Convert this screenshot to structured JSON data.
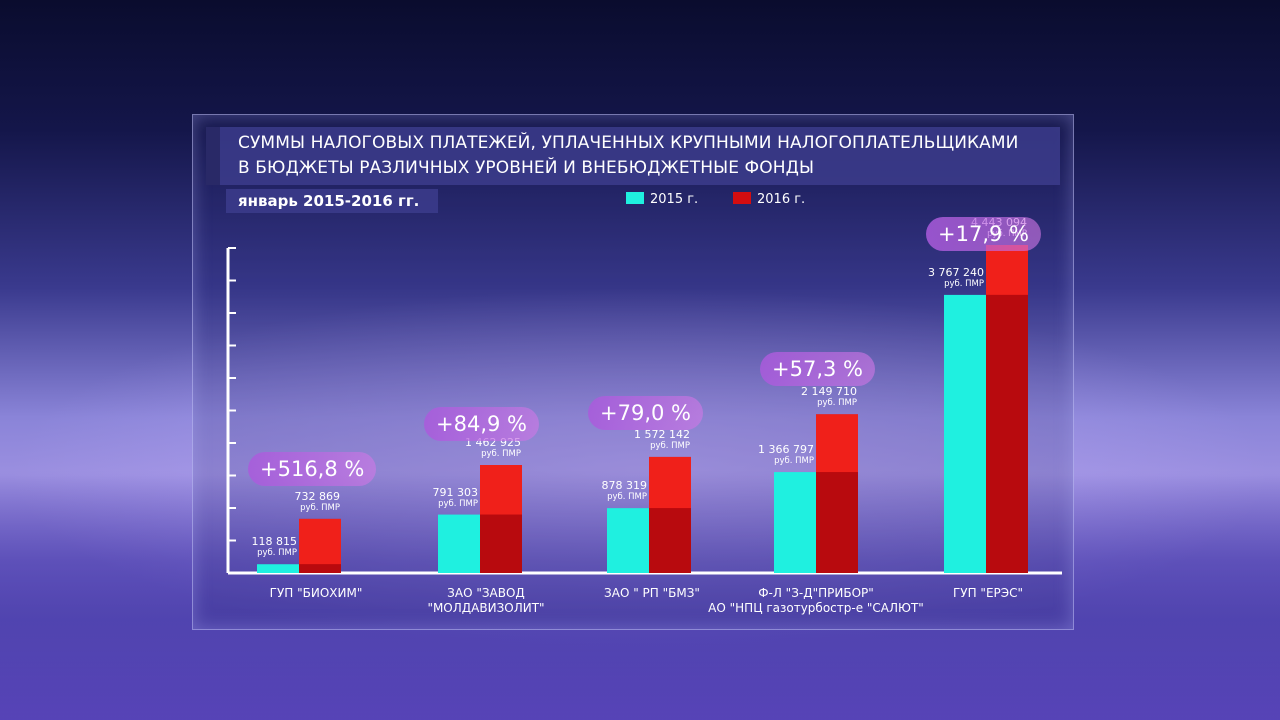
{
  "title_lines": [
    "СУММЫ НАЛОГОВЫХ ПЛАТЕЖЕЙ, УПЛАЧЕННЫХ КРУПНЫМИ НАЛОГОПЛАТЕЛЬЩИКАМИ",
    "В БЮДЖЕТЫ РАЗЛИЧНЫХ УРОВНЕЙ И ВНЕБЮДЖЕТНЫЕ ФОНДЫ"
  ],
  "subtitle": "январь 2015-2016 гг.",
  "legend": [
    {
      "label": "2015 г.",
      "color": "#1ff0e0"
    },
    {
      "label": "2016 г.",
      "color": "#d40d10"
    }
  ],
  "unit": "руб. ПМР",
  "chart_data": {
    "type": "bar",
    "title": "СУММЫ НАЛОГОВЫХ ПЛАТЕЖЕЙ, УПЛАЧЕННЫХ КРУПНЫМИ НАЛОГОПЛАТЕЛЬЩИКАМИ В БЮДЖЕТЫ РАЗЛИЧНЫХ УРОВНЕЙ И ВНЕБЮДЖЕТНЫЕ ФОНДЫ",
    "subtitle": "январь 2015-2016 гг.",
    "categories": [
      [
        "ГУП \"БИОХИМ\""
      ],
      [
        "ЗАО \"ЗАВОД",
        "\"МОЛДАВИЗОЛИТ\""
      ],
      [
        "ЗАО \" РП \"БМЗ\""
      ],
      [
        "Ф-Л \"З-Д\"ПРИБОР\"",
        "АО \"НПЦ газотурбостр-е \"САЛЮТ\""
      ],
      [
        "ГУП \"ЕРЭС\""
      ]
    ],
    "series": [
      {
        "name": "2015 г.",
        "color": "#1ff0e0",
        "values": [
          118815,
          791303,
          878319,
          1366797,
          3767240
        ],
        "labels": [
          "118 815",
          "791 303",
          "878 319",
          "1 366 797",
          "3 767 240"
        ]
      },
      {
        "name": "2016 г.",
        "color": "#d40d10",
        "values": [
          732869,
          1462925,
          1572142,
          2149710,
          4443094
        ],
        "labels": [
          "732 869",
          "1 462 925",
          "1 572 142",
          "2 149 710",
          "4 443 094"
        ]
      }
    ],
    "changes": [
      "+516,8 %",
      "+84,9 %",
      "+79,0 %",
      "+57,3 %",
      "+17,9 %"
    ],
    "ylim": [
      0,
      5000000
    ],
    "legend_position": "top-center"
  }
}
